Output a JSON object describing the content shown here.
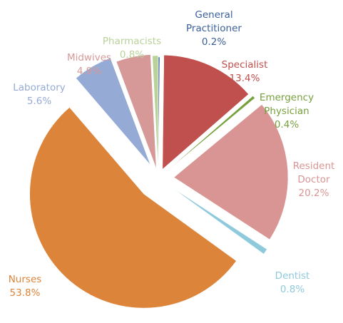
{
  "chart_data": {
    "type": "pie",
    "categories": [
      "General Practitioner",
      "Specialist",
      "Emergency Physician",
      "Resident Doctor",
      "Dentist",
      "Nurses",
      "Laboratory",
      "Midwives",
      "Pharmacists"
    ],
    "values": [
      0.2,
      13.4,
      0.4,
      20.2,
      0.8,
      53.8,
      5.6,
      4.9,
      0.8
    ],
    "value_labels": [
      "0.2%",
      "13.4%",
      "0.4%",
      "20.2%",
      "0.8%",
      "53.8%",
      "5.6%",
      "4.9%",
      "0.8%"
    ],
    "colors": [
      "#3a5f9a",
      "#c0504d",
      "#77a03e",
      "#d99594",
      "#8fcadc",
      "#dc843a",
      "#95abd5",
      "#d69998",
      "#b9d29a"
    ]
  }
}
